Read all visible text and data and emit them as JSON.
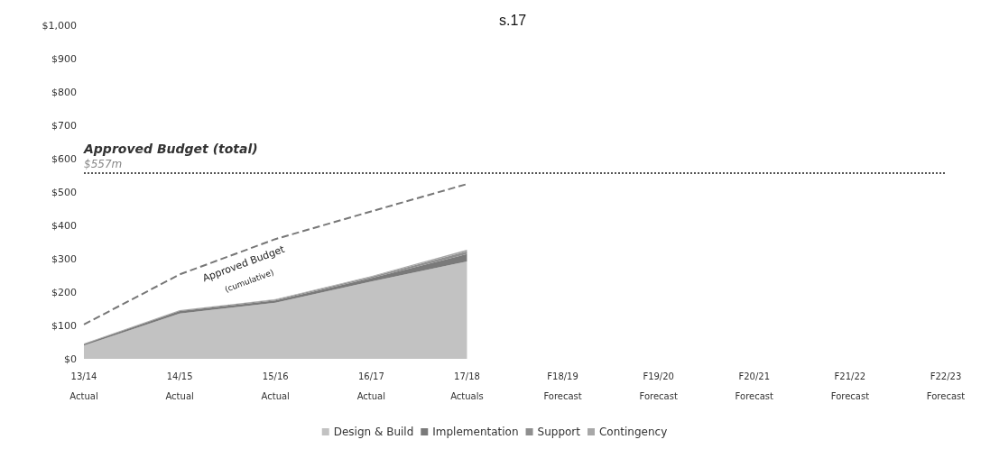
{
  "chart_data": {
    "type": "area",
    "stacked": true,
    "categories": [
      "13/14\nActual",
      "14/15\nActual",
      "15/16\nActual",
      "16/17\nActual",
      "17/18\nActuals",
      "F18/19\nForecast",
      "F19/20\nForecast",
      "F20/21\nForecast",
      "F21/22\nForecast",
      "F22/23\nForecast"
    ],
    "series": [
      {
        "name": "Design & Build",
        "color": "#c2c2c2",
        "values": [
          40,
          136,
          168,
          232,
          292,
          null,
          null,
          null,
          null,
          null
        ]
      },
      {
        "name": "Implementation",
        "color": "#7a7a7a",
        "values": [
          4,
          7,
          7,
          10,
          22,
          null,
          null,
          null,
          null,
          null
        ]
      },
      {
        "name": "Support",
        "color": "#8f8f8f",
        "values": [
          1,
          2,
          3,
          4,
          8,
          null,
          null,
          null,
          null,
          null
        ]
      },
      {
        "name": "Contingency",
        "color": "#a8a8a8",
        "values": [
          1,
          1,
          1,
          2,
          5,
          null,
          null,
          null,
          null,
          null
        ]
      },
      {
        "type": "line",
        "color": "#777777",
        "line_style": "dashed",
        "values": [
          103,
          253,
          359,
          442,
          524,
          null,
          null,
          null,
          null,
          null
        ]
      }
    ],
    "ylim": [
      0,
      1000
    ],
    "yticks": [
      {
        "value": 0,
        "label": "$0"
      },
      {
        "value": 100,
        "label": "$100"
      },
      {
        "value": 200,
        "label": "$200"
      },
      {
        "value": 300,
        "label": "$300"
      },
      {
        "value": 400,
        "label": "$400"
      },
      {
        "value": 500,
        "label": "$500"
      },
      {
        "value": 600,
        "label": "$600"
      },
      {
        "value": 700,
        "label": "$700"
      },
      {
        "value": 800,
        "label": "$800"
      },
      {
        "value": 900,
        "label": "$900"
      },
      {
        "value": 1000,
        "label": "$1,000"
      }
    ],
    "ref_lines": [
      {
        "axis": "y",
        "value": 557,
        "label": "Approved Budget (total)",
        "color": "#555555",
        "line_style": "dotted"
      }
    ],
    "annotations": [
      {
        "text": "$557m",
        "x": "13/14\nActual",
        "y": 557
      },
      "Approved Budget",
      "(cumulative)",
      "s.17"
    ],
    "grid": false,
    "legend": "bottom"
  }
}
